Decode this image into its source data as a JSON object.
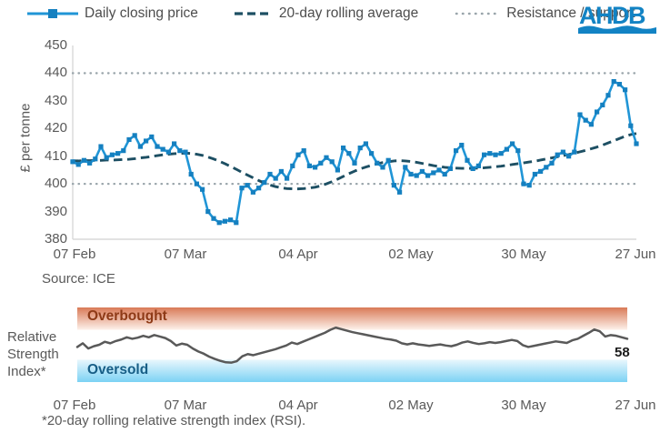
{
  "legend": {
    "daily_label": "Daily closing price",
    "average_label": "20-day rolling average",
    "guide_label": "Resistance / support"
  },
  "logo_text": "AHDB",
  "source": "Source: ICE",
  "footnote": "*20-day rolling relative strength index (RSI).",
  "rsi_panel": {
    "label_lines": [
      "Relative",
      "Strength",
      "Index*"
    ],
    "overbought_label": "Overbought",
    "oversold_label": "Oversold",
    "last_value": "58"
  },
  "palette": {
    "daily": "#2095d6",
    "daily_marker": "#1580c0",
    "average": "#1d4f63",
    "guide": "#9aa5ab",
    "axis": "#d9d9d9",
    "rsi_line": "#595959",
    "overbought_top": "#d97a57",
    "overbought_bottom": "#fdf1ea",
    "oversold_top": "#e9f7fd",
    "oversold_bottom": "#7cd2f4",
    "overbought_text": "#8e3a17",
    "oversold_text": "#175e86",
    "logo": "#1283c4"
  },
  "chart_data": [
    {
      "type": "line",
      "id": "price",
      "ylabel": "£ per tonne",
      "ylim": [
        380,
        450
      ],
      "yticks": [
        "450",
        "440",
        "430",
        "420",
        "410",
        "400",
        "390",
        "380"
      ],
      "xticklabels": [
        "07 Feb",
        "07 Mar",
        "04 Apr",
        "02 May",
        "30 May",
        "27 Jun"
      ],
      "grid": "off",
      "legend_position": "top",
      "hlines": [
        440,
        400
      ],
      "hlines_meaning": "Resistance / support",
      "series": [
        {
          "name": "Daily closing price",
          "style": "solid-with-square-markers",
          "values": [
            408,
            407,
            408.5,
            407.5,
            409,
            413.5,
            409.5,
            410.5,
            411,
            412,
            416,
            417.5,
            413.5,
            415.5,
            417,
            413.5,
            412.5,
            411.5,
            414.5,
            412,
            411.5,
            403.5,
            400,
            398,
            390,
            387.5,
            386,
            386.5,
            387,
            386,
            398.5,
            399.5,
            397,
            398.5,
            400.5,
            403.5,
            402,
            404.5,
            402,
            406.5,
            410.5,
            412,
            406.5,
            406,
            407.5,
            409.5,
            408,
            405,
            413,
            411,
            407.5,
            413,
            414.5,
            411,
            407.5,
            406,
            408.5,
            399.5,
            397,
            406,
            403.5,
            403,
            404.5,
            403,
            404,
            405,
            403.5,
            405.5,
            412,
            414,
            408.5,
            405.5,
            406.5,
            410.5,
            411,
            410.5,
            411,
            412.5,
            414.5,
            412,
            400,
            399.5,
            403.5,
            404.5,
            406,
            407.5,
            410.5,
            411.5,
            410,
            411.5,
            425,
            423,
            421.5,
            426,
            428.5,
            432,
            437,
            436,
            434,
            421,
            414.5
          ]
        },
        {
          "name": "20-day rolling average",
          "style": "dashed",
          "values": [
            408.3,
            408.3,
            408.4,
            408.4,
            408.5,
            408.5,
            408.6,
            408.6,
            408.7,
            408.8,
            408.9,
            409.1,
            409.4,
            409.6,
            409.9,
            410.2,
            410.5,
            410.7,
            410.9,
            411,
            411.1,
            411,
            410.7,
            410.3,
            409.7,
            409,
            408.2,
            407.3,
            406.3,
            405.3,
            404.2,
            403.2,
            402.2,
            401.2,
            400.3,
            399.6,
            399,
            398.6,
            398.3,
            398.2,
            398.2,
            398.3,
            398.5,
            398.8,
            399.3,
            400,
            400.8,
            401.7,
            402.7,
            403.7,
            404.6,
            405.4,
            406.1,
            406.7,
            407.2,
            407.7,
            408,
            408.3,
            408.4,
            408.3,
            408.1,
            407.8,
            407.4,
            407,
            406.6,
            406.3,
            406,
            405.8,
            405.7,
            405.6,
            405.6,
            405.6,
            405.7,
            405.8,
            406,
            406.2,
            406.4,
            406.7,
            407,
            407.3,
            407.6,
            407.9,
            408.2,
            408.6,
            409,
            409.4,
            409.8,
            410.2,
            410.6,
            411.1,
            411.6,
            412.1,
            412.7,
            413.3,
            414,
            414.8,
            415.6,
            416.4,
            417.2,
            417.8,
            418.2
          ]
        }
      ]
    },
    {
      "type": "line",
      "id": "rsi",
      "ylim": [
        0,
        100
      ],
      "bands": {
        "overbought_above": 70,
        "oversold_below": 30
      },
      "xticklabels": [
        "07 Feb",
        "07 Mar",
        "04 Apr",
        "02 May",
        "30 May",
        "27 Jun"
      ],
      "series": [
        {
          "name": "20-day rolling relative strength index",
          "style": "solid",
          "values": [
            47,
            52,
            45,
            48,
            50,
            54,
            52,
            55,
            57,
            60,
            58,
            59.5,
            62,
            60,
            63,
            61,
            59,
            55,
            49,
            51.5,
            50,
            45,
            41,
            38,
            34,
            31,
            28.5,
            26.5,
            26,
            28,
            34.5,
            37.5,
            36,
            38,
            40,
            42,
            44,
            46.5,
            49,
            53,
            51,
            54,
            57,
            60,
            63,
            66,
            70,
            73,
            71,
            69,
            67,
            65.5,
            64,
            62.5,
            61,
            59.5,
            58,
            57,
            55.5,
            52,
            50.5,
            52,
            50.5,
            49.5,
            48.5,
            49.5,
            50.5,
            49,
            48,
            50,
            53,
            54.5,
            52.5,
            51,
            52,
            53.5,
            52.5,
            53.5,
            55,
            56.5,
            55,
            49.5,
            47,
            48.5,
            50,
            51.5,
            53,
            54.5,
            53.5,
            52.5,
            56,
            58,
            62,
            66,
            70.5,
            68,
            61,
            63,
            62,
            60,
            58
          ]
        }
      ]
    }
  ]
}
